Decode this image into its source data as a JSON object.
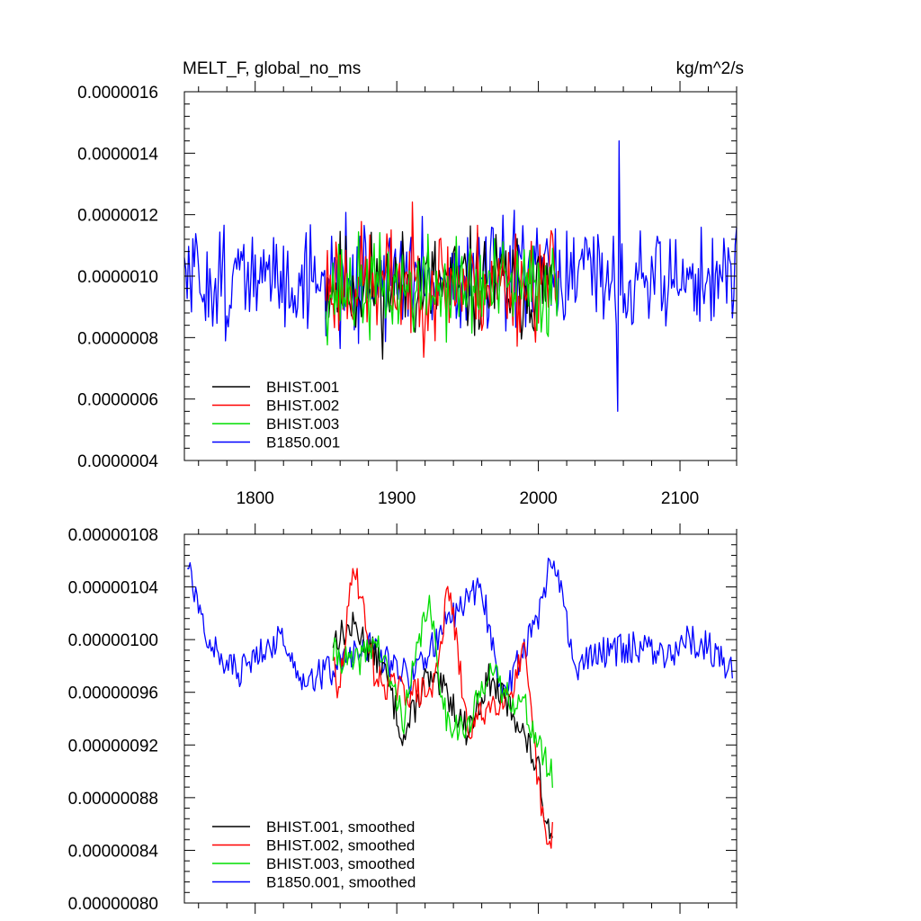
{
  "chart_data": [
    {
      "type": "line",
      "title": "MELT_F, global_no_ms",
      "units": "kg/m^2/s",
      "xlim": [
        1750,
        2140
      ],
      "ylim": [
        4e-07,
        1.6e-06
      ],
      "xticks": [
        1800,
        1900,
        2000,
        2100
      ],
      "yticks": [
        4e-07,
        6e-07,
        8e-07,
        1e-06,
        1.2e-06,
        1.4e-06,
        1.6e-06
      ],
      "ytick_labels": [
        "0.0000004",
        "0.0000006",
        "0.0000008",
        "0.0000010",
        "0.0000012",
        "0.0000014",
        "0.0000016"
      ],
      "series": [
        {
          "name": "BHIST.001",
          "color": "#000000",
          "x_start": 1850,
          "x_end": 2010,
          "mean": 9.7e-07,
          "amp": 1.4e-07,
          "seed": 11
        },
        {
          "name": "BHIST.002",
          "color": "#ff0000",
          "x_start": 1850,
          "x_end": 2014,
          "mean": 9.8e-07,
          "amp": 1.5e-07,
          "seed": 23
        },
        {
          "name": "BHIST.003",
          "color": "#00dd00",
          "x_start": 1850,
          "x_end": 2014,
          "mean": 9.6e-07,
          "amp": 1.3e-07,
          "seed": 37
        },
        {
          "name": "B1850.001",
          "color": "#0000ff",
          "x_start": 1750,
          "x_end": 2140,
          "mean": 9.9e-07,
          "amp": 1.4e-07,
          "seed": 51
        }
      ],
      "extremes": {
        "max": 1.44e-06,
        "max_x": 2057,
        "min": 5.6e-07,
        "min_x": 2056
      }
    },
    {
      "type": "line",
      "title": "",
      "units": "",
      "xlim": [
        1750,
        2140
      ],
      "ylim": [
        8e-07,
        1.08e-06
      ],
      "xticks": [
        1800,
        1900,
        2000,
        2100
      ],
      "yticks": [
        8e-07,
        8.4e-07,
        8.8e-07,
        9.2e-07,
        9.6e-07,
        1e-06,
        1.04e-06,
        1.08e-06
      ],
      "ytick_labels": [
        "0.00000080",
        "0.00000084",
        "0.00000088",
        "0.00000092",
        "0.00000096",
        "0.00000100",
        "0.00000104",
        "0.00000108"
      ],
      "series": [
        {
          "name": "BHIST.001, smoothed",
          "color": "#000000",
          "x_start": 1855,
          "x_end": 2010,
          "seed": 13,
          "anchors": [
            [
              1855,
              1e-06
            ],
            [
              1870,
              1.01e-06
            ],
            [
              1890,
              9.8e-07
            ],
            [
              1905,
              9.25e-07
            ],
            [
              1920,
              9.7e-07
            ],
            [
              1935,
              9.6e-07
            ],
            [
              1950,
              9.3e-07
            ],
            [
              1965,
              9.7e-07
            ],
            [
              1985,
              9.4e-07
            ],
            [
              2000,
              9e-07
            ],
            [
              2006,
              8.6e-07
            ],
            [
              2010,
              8.6e-07
            ]
          ]
        },
        {
          "name": "BHIST.002, smoothed",
          "color": "#ff0000",
          "x_start": 1855,
          "x_end": 2010,
          "seed": 29,
          "anchors": [
            [
              1855,
              9.9e-07
            ],
            [
              1858,
              9.5e-07
            ],
            [
              1870,
              1.06e-06
            ],
            [
              1885,
              9.7e-07
            ],
            [
              1905,
              9.6e-07
            ],
            [
              1925,
              9.6e-07
            ],
            [
              1937,
              1.04e-06
            ],
            [
              1950,
              9.3e-07
            ],
            [
              1965,
              9.5e-07
            ],
            [
              1980,
              9.6e-07
            ],
            [
              1990,
              9.9e-07
            ],
            [
              2000,
              8.9e-07
            ],
            [
              2007,
              8.35e-07
            ],
            [
              2010,
              8.6e-07
            ]
          ]
        },
        {
          "name": "BHIST.003, smoothed",
          "color": "#00dd00",
          "x_start": 1855,
          "x_end": 2010,
          "seed": 41,
          "anchors": [
            [
              1855,
              9.9e-07
            ],
            [
              1870,
              9.8e-07
            ],
            [
              1885,
              1e-06
            ],
            [
              1905,
              9.4e-07
            ],
            [
              1922,
              1.03e-06
            ],
            [
              1935,
              9.4e-07
            ],
            [
              1950,
              9.3e-07
            ],
            [
              1965,
              9.8e-07
            ],
            [
              1975,
              9.6e-07
            ],
            [
              1990,
              9.5e-07
            ],
            [
              2000,
              9.2e-07
            ],
            [
              2010,
              8.95e-07
            ]
          ]
        },
        {
          "name": "B1850.001, smoothed",
          "color": "#0000ff",
          "x_start": 1752,
          "x_end": 2137,
          "seed": 57,
          "anchors": [
            [
              1752,
              1.06e-06
            ],
            [
              1760,
              1.02e-06
            ],
            [
              1775,
              9.85e-07
            ],
            [
              1790,
              9.75e-07
            ],
            [
              1805,
              9.95e-07
            ],
            [
              1820,
              1e-06
            ],
            [
              1835,
              9.7e-07
            ],
            [
              1850,
              9.75e-07
            ],
            [
              1880,
              9.95e-07
            ],
            [
              1910,
              9.7e-07
            ],
            [
              1940,
              1.02e-06
            ],
            [
              1960,
              1.04e-06
            ],
            [
              1975,
              9.55e-07
            ],
            [
              2000,
              1.02e-06
            ],
            [
              2008,
              1.057e-06
            ],
            [
              2015,
              1.04e-06
            ],
            [
              2025,
              9.8e-07
            ],
            [
              2045,
              9.9e-07
            ],
            [
              2070,
              9.95e-07
            ],
            [
              2090,
              9.85e-07
            ],
            [
              2105,
              1e-06
            ],
            [
              2120,
              9.95e-07
            ],
            [
              2137,
              9.75e-07
            ]
          ]
        }
      ]
    }
  ]
}
